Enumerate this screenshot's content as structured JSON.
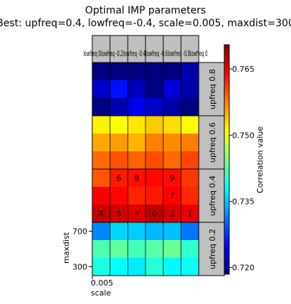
{
  "figure": {
    "title_line1": "Optimal IMP parameters",
    "title_line2": "Best: upfreq=0.4, lowfreq=-0.4, scale=0.005, maxdist=300"
  },
  "chart_data": {
    "type": "heatmap",
    "colormap": "jet",
    "column_headers": [
      "lowfreq 0",
      "lowfreq -0.2",
      "lowfreq -0.4",
      "lowfreq -0.6",
      "lowfreq -0.8",
      "lowfreq 0"
    ],
    "column_header_visible": "lowfreq 0lowfreq -0.2lowfreq -0.4lowfreq -0.6lowfreq -0.8lowfreq 0",
    "row_groups": [
      {
        "label": "upfreq 0.8",
        "rows": 3
      },
      {
        "label": "upfreq 0.6",
        "rows": 3
      },
      {
        "label": "upfreq 0.4",
        "rows": 3
      },
      {
        "label": "upfreq 0.2",
        "rows": 3
      }
    ],
    "values": [
      [
        0.7138,
        0.7146,
        0.715,
        0.7164,
        0.7136,
        0.7208
      ],
      [
        0.7222,
        0.7258,
        0.7214,
        0.7188,
        0.723,
        0.7206
      ],
      [
        0.7182,
        0.721,
        0.724,
        0.7222,
        0.7206,
        0.7174
      ],
      [
        0.7516,
        0.751,
        0.7522,
        0.7536,
        0.7526,
        0.7512
      ],
      [
        0.7554,
        0.756,
        0.7548,
        0.7574,
        0.757,
        0.7576
      ],
      [
        0.7586,
        0.7598,
        0.759,
        0.76,
        0.7586,
        0.7606
      ],
      [
        0.7596,
        0.7626,
        0.7632,
        0.7636,
        0.7634,
        0.7612
      ],
      [
        0.7644,
        0.7638,
        0.7622,
        0.7628,
        0.764,
        0.762
      ],
      [
        0.767,
        0.7664,
        0.7658,
        0.7674,
        0.766,
        0.765
      ],
      [
        0.732,
        0.736,
        0.7355,
        0.7345,
        0.7348,
        0.731
      ],
      [
        0.742,
        0.743,
        0.7415,
        0.7425,
        0.7435,
        0.7405
      ],
      [
        0.7395,
        0.738,
        0.737,
        0.74,
        0.7378,
        0.7385
      ]
    ],
    "cell_annotations": [
      {
        "row": 6,
        "col": 1,
        "text": "6"
      },
      {
        "row": 6,
        "col": 2,
        "text": "8"
      },
      {
        "row": 6,
        "col": 4,
        "text": "9"
      },
      {
        "row": 7,
        "col": 4,
        "text": "7"
      },
      {
        "row": 8,
        "col": 0,
        "text": "4"
      },
      {
        "row": 8,
        "col": 1,
        "text": "5"
      },
      {
        "row": 8,
        "col": 2,
        "text": "3"
      },
      {
        "row": 8,
        "col": 3,
        "text": "0"
      },
      {
        "row": 8,
        "col": 4,
        "text": "2"
      },
      {
        "row": 8,
        "col": 5,
        "text": "1"
      }
    ],
    "y_axis": {
      "label": "maxdist",
      "tick_labels": [
        "700",
        "300"
      ]
    },
    "x_axis": {
      "label": "scale",
      "tick_labels": [
        "0.005"
      ]
    },
    "colorbar": {
      "label": "Correlation value",
      "range": [
        0.7185,
        0.7705
      ],
      "ticks": [
        0.72,
        0.735,
        0.75,
        0.765
      ],
      "tick_labels": [
        "0.720",
        "0.735",
        "0.750",
        "0.765"
      ]
    }
  }
}
